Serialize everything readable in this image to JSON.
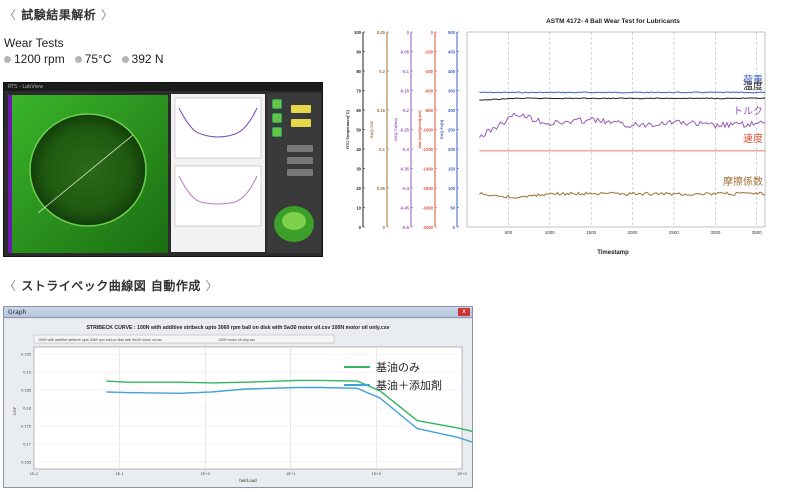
{
  "section1": {
    "chevron_left": "〈",
    "title": "試験結果解析",
    "chevron_right": "〉"
  },
  "wear_tests": {
    "title": "Wear Tests",
    "params": [
      "1200 rpm",
      "75°C",
      "392 N"
    ]
  },
  "app_window": {
    "title": "RTS - LabView"
  },
  "section2": {
    "chevron_left": "〈",
    "title": "ストライベック曲線図 自動作成",
    "chevron_right": "〉"
  },
  "stribeck_window": {
    "title": "Graph",
    "close": "x"
  },
  "colors": {
    "load": "#3a5fc4",
    "temperature": "#222222",
    "torque": "#9a5ab8",
    "speed": "#e3503a",
    "cof": "#a0703a",
    "base_oil": "#33b561",
    "additive": "#3fa2d8"
  },
  "chart_data": [
    {
      "type": "line",
      "title": "ASTM 4172- 4 Ball Wear Test for Lubricants",
      "xlabel": "Timestamp",
      "x_ticks": [
        "500",
        "1000",
        "1500",
        "2000",
        "2500",
        "3000",
        "3500"
      ],
      "xlim": [
        0,
        3600
      ],
      "grid": true,
      "axes": [
        {
          "label": "RTC:Temperature(°C)",
          "ticks": [
            "100",
            "90",
            "80",
            "70",
            "60",
            "50",
            "40",
            "30",
            "20",
            "10",
            "0"
          ]
        },
        {
          "label": "DAQ:COF",
          "ticks": [
            "0.25",
            "0.2",
            "0.15",
            "0.1",
            "0.05",
            "0"
          ]
        },
        {
          "label": "DAQ:Tz(Nm)",
          "ticks": [
            "0",
            "-0.05",
            "-0.1",
            "-0.15",
            "-0.2",
            "-0.25",
            "-0.3",
            "-0.35",
            "-0.4",
            "-0.45",
            "-0.5"
          ]
        },
        {
          "label": "dtal:AxialSpeed(rpm)",
          "ticks": [
            "0",
            "-200",
            "-400",
            "-600",
            "-800",
            "-1000",
            "-1200",
            "-1400",
            "-1600",
            "-1800",
            "-2000"
          ]
        },
        {
          "label": "DAQ:Fz(N)",
          "ticks": [
            "500",
            "450",
            "400",
            "350",
            "300",
            "250",
            "200",
            "150",
            "100",
            "50",
            "0"
          ]
        }
      ],
      "series": [
        {
          "name": "荷重",
          "y_fraction": [
            0.69,
            0.69,
            0.69,
            0.69,
            0.69,
            0.69,
            0.69,
            0.69
          ]
        },
        {
          "name": "温度",
          "y_fraction": [
            0.65,
            0.66,
            0.66,
            0.66,
            0.66,
            0.66,
            0.66,
            0.66
          ]
        },
        {
          "name": "トルク",
          "y_fraction": [
            0.46,
            0.58,
            0.53,
            0.55,
            0.52,
            0.54,
            0.52,
            0.53
          ]
        },
        {
          "name": "速度",
          "y_fraction": [
            0.39,
            0.39,
            0.39,
            0.39,
            0.39,
            0.39,
            0.39,
            0.39
          ]
        },
        {
          "name": "摩擦係数",
          "y_fraction": [
            0.17,
            0.15,
            0.17,
            0.17,
            0.17,
            0.17,
            0.17,
            0.17
          ]
        }
      ],
      "x": [
        150,
        600,
        1000,
        1500,
        2000,
        2500,
        3000,
        3600
      ]
    },
    {
      "type": "line",
      "title": "STRIBECK CURVE : 100N with additive stribeck upto 3060 rpm ball on disk with 5w30 motor oil.csv  100N motor oil only.csv",
      "legend_top": [
        "100N with additive stribeck upto 3060 rpm ball on disk with 5w30 motor oil.csv",
        "100N motor oil only.csv"
      ],
      "xlabel": "hel/Load",
      "ylabel": "COF",
      "x_scale": "log",
      "x_ticks": [
        "1E-2",
        "1E-1",
        "1E+0",
        "1E+1",
        "1E+2",
        "1E+3"
      ],
      "y_ticks": [
        "0.195",
        "0.19",
        "0.185",
        "0.18",
        "0.175",
        "0.17",
        "0.165"
      ],
      "ylim": [
        0.163,
        0.197
      ],
      "legend": "top-right",
      "series": [
        {
          "name": "基油のみ",
          "x": [
            0.07,
            0.12,
            0.5,
            1.2,
            3,
            12,
            22,
            60,
            110,
            300,
            900,
            2500
          ],
          "y": [
            0.1875,
            0.1872,
            0.1872,
            0.187,
            0.1872,
            0.1877,
            0.1877,
            0.1875,
            0.1848,
            0.1765,
            0.1744,
            0.172
          ]
        },
        {
          "name": "基油＋添加剤",
          "x": [
            0.07,
            0.12,
            0.5,
            1.2,
            3,
            12,
            22,
            60,
            110,
            300,
            900,
            2500
          ],
          "y": [
            0.1845,
            0.1843,
            0.1841,
            0.1845,
            0.1853,
            0.1857,
            0.1857,
            0.1855,
            0.1828,
            0.1743,
            0.1718,
            0.1683
          ]
        }
      ]
    }
  ]
}
